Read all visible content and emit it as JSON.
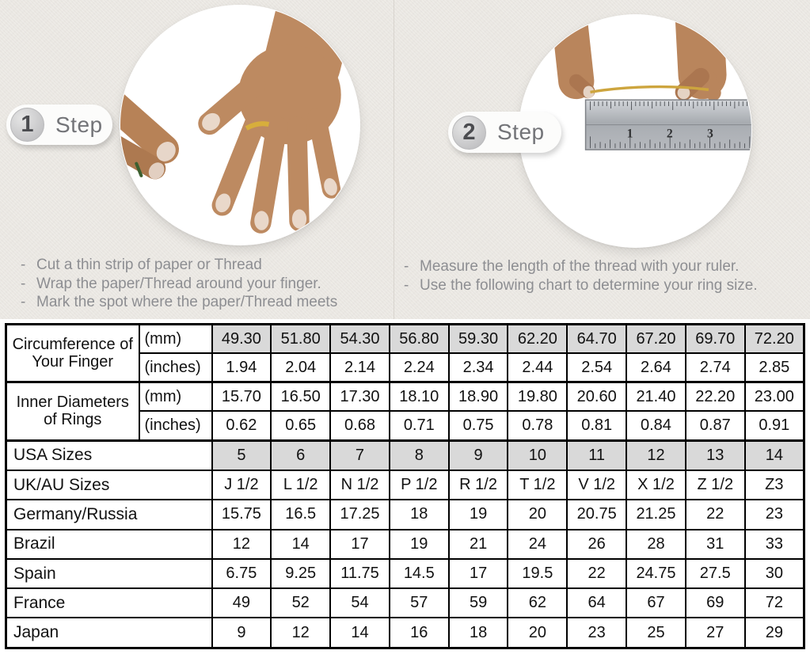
{
  "steps": [
    {
      "number": "1",
      "label": "Step",
      "instructions": [
        "Cut a thin strip of paper or Thread",
        "Wrap the paper/Thread around your finger.",
        "Mark the spot where the paper/Thread meets"
      ],
      "image": "hand-wearing-thin-gold-ring"
    },
    {
      "number": "2",
      "label": "Step",
      "instructions": [
        "Measure the length of the thread with your ruler.",
        "Use the following chart to determine your ring size."
      ],
      "image": "hands-measuring-thread-with-ruler",
      "ruler_numbers": [
        "1",
        "2",
        "3"
      ]
    }
  ],
  "table": {
    "groups": [
      {
        "label": "Circumference of Your Finger",
        "rows": [
          {
            "unit": "(mm)",
            "shaded": true,
            "thick_top": false,
            "values": [
              "49.30",
              "51.80",
              "54.30",
              "56.80",
              "59.30",
              "62.20",
              "64.70",
              "67.20",
              "69.70",
              "72.20"
            ]
          },
          {
            "unit": "(inches)",
            "shaded": false,
            "thick_top": false,
            "values": [
              "1.94",
              "2.04",
              "2.14",
              "2.24",
              "2.34",
              "2.44",
              "2.54",
              "2.64",
              "2.74",
              "2.85"
            ]
          }
        ]
      },
      {
        "label": "Inner Diameters of Rings",
        "rows": [
          {
            "unit": "(mm)",
            "shaded": false,
            "thick_top": true,
            "values": [
              "15.70",
              "16.50",
              "17.30",
              "18.10",
              "18.90",
              "19.80",
              "20.60",
              "21.40",
              "22.20",
              "23.00"
            ]
          },
          {
            "unit": "(inches)",
            "shaded": false,
            "thick_top": false,
            "values": [
              "0.62",
              "0.65",
              "0.68",
              "0.71",
              "0.75",
              "0.78",
              "0.81",
              "0.84",
              "0.87",
              "0.91"
            ]
          }
        ]
      }
    ],
    "size_rows": [
      {
        "label": "USA Sizes",
        "shaded": true,
        "values": [
          "5",
          "6",
          "7",
          "8",
          "9",
          "10",
          "11",
          "12",
          "13",
          "14"
        ]
      },
      {
        "label": "UK/AU Sizes",
        "shaded": false,
        "values": [
          "J 1/2",
          "L 1/2",
          "N 1/2",
          "P 1/2",
          "R 1/2",
          "T 1/2",
          "V 1/2",
          "X 1/2",
          "Z 1/2",
          "Z3"
        ]
      },
      {
        "label": "Germany/Russia",
        "shaded": false,
        "values": [
          "15.75",
          "16.5",
          "17.25",
          "18",
          "19",
          "20",
          "20.75",
          "21.25",
          "22",
          "23"
        ]
      },
      {
        "label": "Brazil",
        "shaded": false,
        "values": [
          "12",
          "14",
          "17",
          "19",
          "21",
          "24",
          "26",
          "28",
          "31",
          "33"
        ]
      },
      {
        "label": "Spain",
        "shaded": false,
        "values": [
          "6.75",
          "9.25",
          "11.75",
          "14.5",
          "17",
          "19.5",
          "22",
          "24.75",
          "27.5",
          "30"
        ]
      },
      {
        "label": "France",
        "shaded": false,
        "values": [
          "49",
          "52",
          "54",
          "57",
          "59",
          "62",
          "64",
          "67",
          "69",
          "72"
        ]
      },
      {
        "label": "Japan",
        "shaded": false,
        "values": [
          "9",
          "12",
          "14",
          "16",
          "18",
          "20",
          "23",
          "25",
          "27",
          "29"
        ]
      }
    ]
  },
  "colors": {
    "shaded_cell": "#d9d9d9",
    "table_border": "#000000",
    "gold_thread": "#cda53e",
    "background": "#eae7e2"
  }
}
